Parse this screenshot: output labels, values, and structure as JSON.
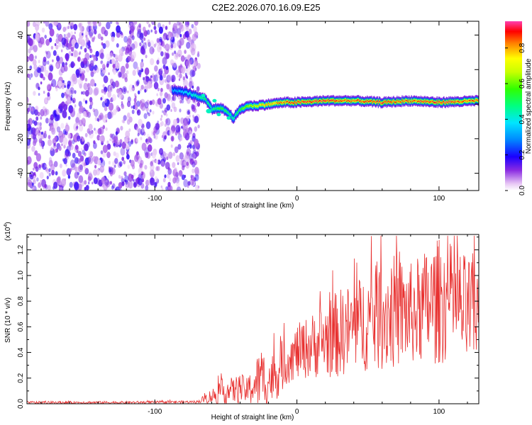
{
  "title": "C2E2.2026.070.16.09.E25",
  "chart_data": [
    {
      "type": "heatmap",
      "xlabel": "Height of straight line (km)",
      "ylabel": "Frequency (Hz)",
      "xlim": [
        -190,
        128
      ],
      "ylim": [
        -50,
        48
      ],
      "xticks": [
        -100,
        0,
        100
      ],
      "xtick_labels": [
        "-100",
        "0",
        "100"
      ],
      "yticks": [
        -40,
        -20,
        0,
        20,
        40
      ],
      "ytick_labels": [
        "-40",
        "-20",
        "0",
        "20",
        "40"
      ],
      "noise_region": {
        "x_range": [
          -190,
          -72
        ],
        "y_range": [
          -50,
          48
        ],
        "typical_amplitude": 0.1
      },
      "signal_track": {
        "x": [
          -88,
          -80,
          -75,
          -70,
          -65,
          -60,
          -55,
          -50,
          -45,
          -40,
          -35,
          -30,
          -20,
          -10,
          0,
          20,
          40,
          60,
          80,
          100,
          128
        ],
        "freq": [
          8,
          7,
          6,
          4,
          3,
          -3,
          -2,
          -4,
          -8,
          -3,
          -1,
          -1,
          0,
          1,
          1,
          2,
          2,
          1,
          2,
          1,
          2
        ],
        "peak_amplitude": [
          0.35,
          0.4,
          0.45,
          0.5,
          0.55,
          0.5,
          0.6,
          0.55,
          0.5,
          0.6,
          0.7,
          0.75,
          0.85,
          0.9,
          0.95,
          0.95,
          0.9,
          0.95,
          0.9,
          0.95,
          0.9
        ]
      },
      "colorbar": {
        "label": "Normalized spectral amplitude",
        "range": [
          0,
          0.95
        ],
        "ticks": [
          0.0,
          0.2,
          0.4,
          0.6,
          0.8
        ],
        "tick_labels": [
          "0.0",
          "0.2",
          "0.4",
          "0.6",
          "0.8"
        ]
      }
    },
    {
      "type": "line",
      "xlabel": "Height of straight line (km)",
      "ylabel": "SNR (10 * v/v)",
      "y_multiplier": "(x10",
      "y_multiplier_exp": "4",
      "y_multiplier_close": ")",
      "xlim": [
        -190,
        128
      ],
      "ylim": [
        0,
        1.32
      ],
      "xticks": [
        -100,
        0,
        100
      ],
      "xtick_labels": [
        "-100",
        "0",
        "100"
      ],
      "yticks": [
        0.0,
        0.2,
        0.4,
        0.6,
        0.8,
        1.0,
        1.2
      ],
      "ytick_labels": [
        "0.0",
        "0.2",
        "0.4",
        "0.6",
        "0.8",
        "1.0",
        "1.2"
      ],
      "color": "#e8302f",
      "series": [
        {
          "name": "SNR",
          "x": [
            -190,
            -120,
            -70,
            -60,
            -50,
            -45,
            -40,
            -35,
            -30,
            -25,
            -20,
            -15,
            -10,
            -5,
            0,
            10,
            20,
            30,
            40,
            50,
            60,
            70,
            80,
            90,
            100,
            110,
            120,
            128
          ],
          "base": [
            0.01,
            0.01,
            0.015,
            0.06,
            0.1,
            0.1,
            0.12,
            0.1,
            0.15,
            0.2,
            0.18,
            0.22,
            0.3,
            0.35,
            0.4,
            0.45,
            0.5,
            0.55,
            0.6,
            0.65,
            0.7,
            0.72,
            0.7,
            0.75,
            0.8,
            0.8,
            0.7,
            0.75
          ],
          "spread": [
            0.01,
            0.01,
            0.01,
            0.06,
            0.12,
            0.1,
            0.12,
            0.1,
            0.18,
            0.25,
            0.2,
            0.2,
            0.2,
            0.18,
            0.22,
            0.25,
            0.3,
            0.35,
            0.35,
            0.4,
            0.45,
            0.45,
            0.4,
            0.45,
            0.5,
            0.45,
            0.45,
            0.45
          ]
        }
      ]
    }
  ]
}
